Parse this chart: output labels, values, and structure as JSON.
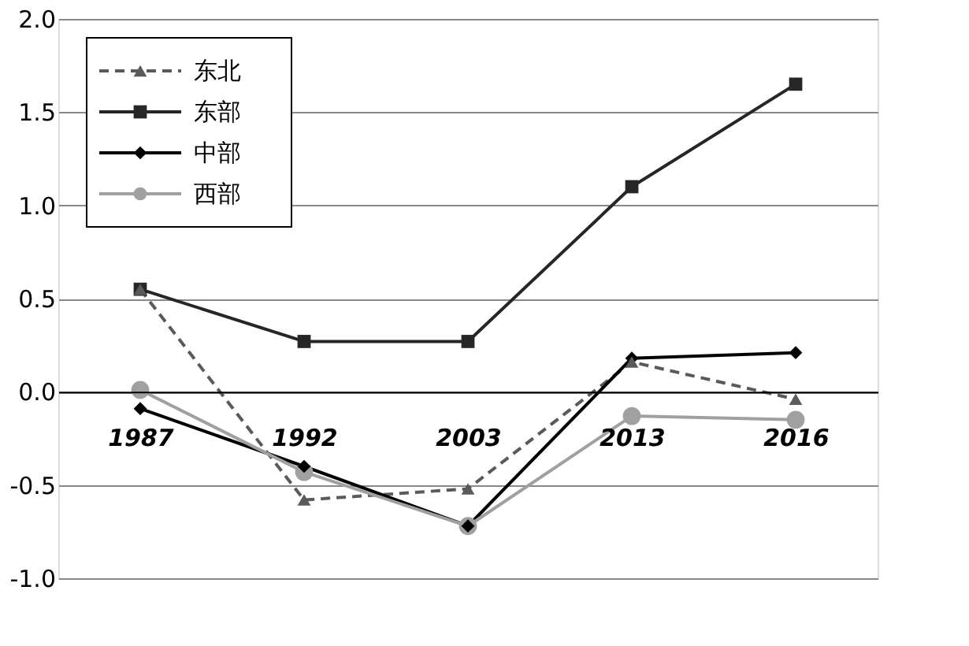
{
  "chart_data": {
    "type": "line",
    "categories": [
      "1987",
      "1992",
      "2003",
      "2013",
      "2016"
    ],
    "series": [
      {
        "name": "东北",
        "color": "#5a5a5a",
        "line_style": "dashed",
        "marker": "triangle",
        "values": [
          0.55,
          -0.58,
          -0.52,
          0.16,
          -0.04
        ]
      },
      {
        "name": "东部",
        "color": "#262626",
        "line_style": "solid",
        "marker": "square",
        "values": [
          0.55,
          0.27,
          0.27,
          1.1,
          1.65
        ]
      },
      {
        "name": "中部",
        "color": "#000000",
        "line_style": "solid",
        "marker": "diamond",
        "values": [
          -0.09,
          -0.4,
          -0.72,
          0.18,
          0.21
        ]
      },
      {
        "name": "西部",
        "color": "#a0a0a0",
        "line_style": "solid",
        "marker": "circle",
        "values": [
          0.01,
          -0.43,
          -0.72,
          -0.13,
          -0.15
        ]
      }
    ],
    "ylim": [
      -1.0,
      2.0
    ],
    "yticks": [
      {
        "value": -1.0,
        "label": "-1.0"
      },
      {
        "value": -0.5,
        "label": "-0.5"
      },
      {
        "value": 0,
        "label": "0.0"
      },
      {
        "value": 0.5,
        "label": "0.5"
      },
      {
        "value": 1.0,
        "label": "1.0"
      },
      {
        "value": 1.5,
        "label": "1.5"
      },
      {
        "value": 2.0,
        "label": "2.0"
      }
    ],
    "grid": "y",
    "legend": "top left"
  }
}
